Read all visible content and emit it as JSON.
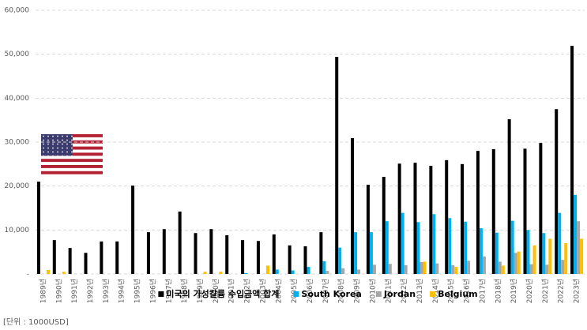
{
  "chart_data": {
    "type": "bar",
    "categories": [
      "1989년",
      "1990년",
      "1991년",
      "1992년",
      "1993년",
      "1994년",
      "1995년",
      "1996년",
      "1997년",
      "1998년",
      "1999년",
      "2000년",
      "2001년",
      "2002년",
      "2003년",
      "2004년",
      "2005년",
      "2006년",
      "2007년",
      "2008년",
      "2009년",
      "2010년",
      "2011년",
      "2012년",
      "2013년",
      "2014년",
      "2015년",
      "2016년",
      "2017년",
      "2018년",
      "2019년",
      "2020년",
      "2021년",
      "2022년",
      "2023년"
    ],
    "series": [
      {
        "name": "미국의 가성칼륨 수입금액 합계",
        "color": "#000000",
        "values": [
          21000,
          7700,
          5900,
          4800,
          7400,
          7400,
          20100,
          9500,
          10200,
          14200,
          9300,
          10200,
          8800,
          7700,
          7500,
          9000,
          6500,
          6300,
          9500,
          49400,
          30900,
          20300,
          22100,
          25100,
          25300,
          24600,
          25900,
          25000,
          28000,
          28400,
          35200,
          28500,
          29800,
          37500,
          51900
        ]
      },
      {
        "name": "South Korea",
        "color": "#00b0f0",
        "values": [
          0,
          0,
          0,
          0,
          0,
          0,
          0,
          0,
          0,
          0,
          0,
          0,
          0,
          200,
          0,
          1000,
          800,
          1600,
          2900,
          6000,
          9500,
          9500,
          12000,
          13900,
          11800,
          13600,
          12700,
          11900,
          10400,
          9400,
          12100,
          10000,
          9300,
          13900,
          18000
        ]
      },
      {
        "name": "Jordan",
        "color": "#a6a6a6",
        "values": [
          0,
          0,
          0,
          0,
          0,
          0,
          0,
          0,
          0,
          0,
          0,
          0,
          0,
          0,
          0,
          0,
          0,
          0,
          700,
          1300,
          1000,
          2100,
          2300,
          2000,
          2700,
          2400,
          2000,
          3000,
          4000,
          2800,
          4800,
          2200,
          2100,
          3200,
          12000
        ]
      },
      {
        "name": "Belgium",
        "color": "#ffc000",
        "values": [
          900,
          500,
          0,
          0,
          0,
          0,
          0,
          0,
          0,
          0,
          500,
          500,
          0,
          0,
          1900,
          0,
          0,
          0,
          0,
          0,
          0,
          0,
          0,
          0,
          2800,
          0,
          1600,
          0,
          0,
          1900,
          5100,
          6500,
          8000,
          7000,
          8000
        ]
      }
    ],
    "ylim": [
      0,
      60000
    ],
    "yticks": [
      {
        "value": 0,
        "label": "-"
      },
      {
        "value": 10000,
        "label": "10,000"
      },
      {
        "value": 20000,
        "label": "20,000"
      },
      {
        "value": 30000,
        "label": "30,000"
      },
      {
        "value": 40000,
        "label": "40,000"
      },
      {
        "value": 50000,
        "label": "50,000"
      },
      {
        "value": 60000,
        "label": "60,000"
      }
    ],
    "grid": true,
    "unit_note": "[단위 : 1000USD]"
  }
}
